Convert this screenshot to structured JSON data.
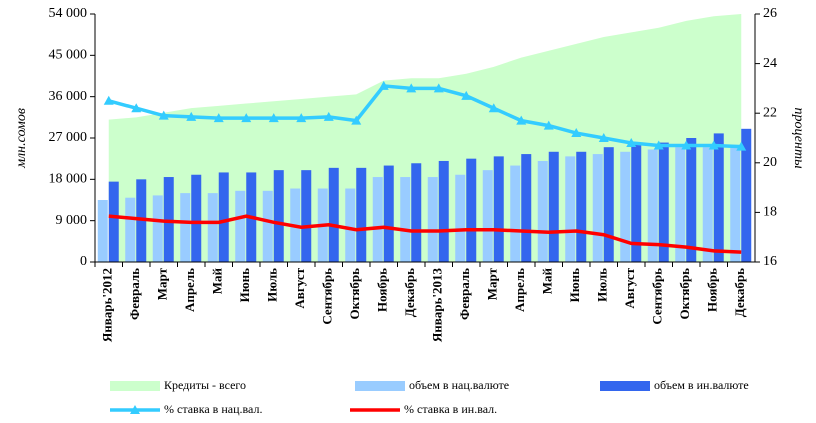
{
  "chart_data": {
    "type": "combo",
    "categories": [
      "Январь'2012",
      "Февраль",
      "Март",
      "Апрель",
      "Май",
      "Июнь",
      "Июль",
      "Август",
      "Сентябрь",
      "Октябрь",
      "Ноябрь",
      "Декабрь",
      "Январь'2013",
      "Февраль",
      "Март",
      "Апрель",
      "Май",
      "Июнь",
      "Июль",
      "Август",
      "Сентябрь",
      "Октябрь",
      "Ноябрь",
      "Декабрь"
    ],
    "ylabel": "млн.сомов",
    "y2label": "проценты",
    "ylim": [
      0,
      54000
    ],
    "yticks": [
      {
        "value": 0,
        "label": "0"
      },
      {
        "value": 9000,
        "label": "9 000"
      },
      {
        "value": 18000,
        "label": "18 000"
      },
      {
        "value": 27000,
        "label": "27 000"
      },
      {
        "value": 36000,
        "label": "36 000"
      },
      {
        "value": 45000,
        "label": "45 000"
      },
      {
        "value": 54000,
        "label": "54 000"
      }
    ],
    "y2lim": [
      16,
      26
    ],
    "y2ticks": [
      16,
      18,
      20,
      22,
      24,
      26
    ],
    "series": [
      {
        "name": "Кредиты - всего",
        "kind": "area",
        "color": "#ccffcc",
        "values": [
          31000,
          31500,
          32500,
          33500,
          34000,
          34500,
          35000,
          35500,
          36000,
          36500,
          39500,
          40000,
          40000,
          41000,
          42500,
          44500,
          46000,
          47500,
          49000,
          50000,
          51000,
          52500,
          53500,
          54000
        ]
      },
      {
        "name": "объем в нац.валюте",
        "kind": "bar",
        "color": "#99ccff",
        "values": [
          13500,
          14000,
          14500,
          15000,
          15000,
          15500,
          15500,
          16000,
          16000,
          16000,
          18500,
          18500,
          18500,
          19000,
          20000,
          21000,
          22000,
          23000,
          23500,
          24000,
          24500,
          25000,
          25000,
          25500
        ]
      },
      {
        "name": "объем в ин.валюте",
        "kind": "bar",
        "color": "#3366ee",
        "values": [
          17500,
          18000,
          18500,
          19000,
          19500,
          19500,
          20000,
          20000,
          20500,
          20500,
          21000,
          21500,
          22000,
          22500,
          23000,
          23500,
          24000,
          24000,
          25000,
          25500,
          26000,
          27000,
          28000,
          29000
        ]
      },
      {
        "name": "% ставка в нац.вал.",
        "kind": "line",
        "axis": "y2",
        "marker": "triangle",
        "color": "#33ccff",
        "values": [
          22.5,
          22.2,
          21.9,
          21.85,
          21.8,
          21.8,
          21.8,
          21.8,
          21.85,
          21.7,
          23.1,
          23.0,
          23.0,
          22.7,
          22.2,
          21.7,
          21.5,
          21.2,
          21.0,
          20.8,
          20.7,
          20.7,
          20.7,
          20.65
        ]
      },
      {
        "name": "% ставка в ин.вал.",
        "kind": "line",
        "axis": "y2",
        "color": "#ff0000",
        "values": [
          17.85,
          17.75,
          17.65,
          17.6,
          17.6,
          17.85,
          17.6,
          17.4,
          17.5,
          17.3,
          17.4,
          17.25,
          17.25,
          17.3,
          17.3,
          17.25,
          17.2,
          17.25,
          17.1,
          16.75,
          16.7,
          16.6,
          16.45,
          16.4
        ]
      }
    ]
  }
}
